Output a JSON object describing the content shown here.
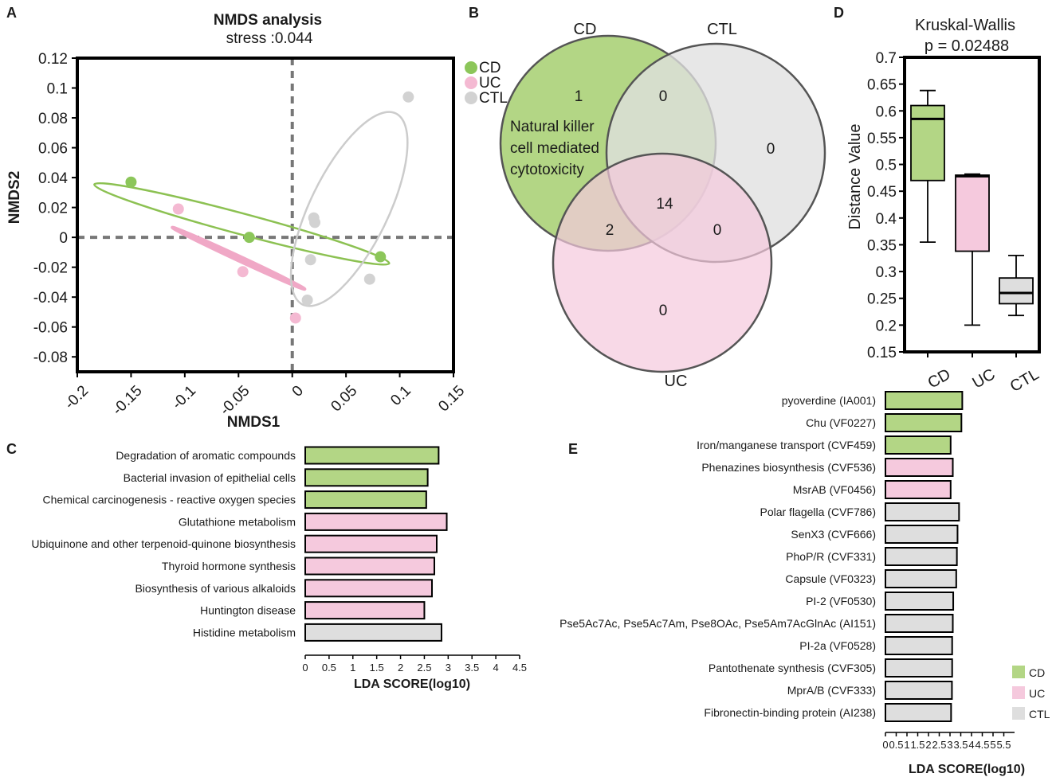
{
  "colors": {
    "cd": "#b3d685",
    "uc": "#f5c9dd",
    "ctl": "#dedede",
    "cd_line": "#8cc152",
    "uc_line": "#f0a8c6",
    "ctl_line": "#cccccc",
    "cd_pt": "#8cc65a",
    "uc_pt": "#f4b9d2",
    "ctl_pt": "#d2d2d2"
  },
  "panel_labels": {
    "a": "A",
    "b": "B",
    "c": "C",
    "d": "D",
    "e": "E"
  },
  "chart_data": [
    {
      "id": "A",
      "type": "scatter",
      "title": "NMDS analysis",
      "subtitle": "stress :0.044",
      "xlabel": "NMDS1",
      "ylabel": "NMDS2",
      "xlim": [
        -0.2,
        0.15
      ],
      "ylim": [
        -0.09,
        0.12
      ],
      "xticks": [
        -0.2,
        -0.15,
        -0.1,
        -0.05,
        0,
        0.05,
        0.1,
        0.15
      ],
      "xtick_labels": [
        "-0.2",
        "-0.15",
        "-0.1",
        "-0.05",
        "0",
        "0.05",
        "0.1",
        "0.15"
      ],
      "yticks": [
        0.12,
        0.1,
        0.08,
        0.06,
        0.04,
        0.02,
        0,
        -0.02,
        -0.04,
        -0.06,
        -0.08
      ],
      "ytick_labels": [
        "0.12",
        "0.1",
        "0.08",
        "0.06",
        "0.04",
        "0.02",
        "0",
        "-0.02",
        "-0.04",
        "-0.06",
        "-0.08"
      ],
      "legend": [
        "CD",
        "UC",
        "CTL"
      ],
      "series": [
        {
          "name": "CD",
          "points": [
            [
              -0.15,
              0.037
            ],
            [
              -0.04,
              0.0
            ],
            [
              0.082,
              -0.013
            ]
          ],
          "ellipse": {
            "cx": -0.047,
            "cy": 0.009,
            "rx": 0.142,
            "ry": 0.007,
            "angle_data_deg": -15
          }
        },
        {
          "name": "UC",
          "points": [
            [
              -0.106,
              0.019
            ],
            [
              -0.046,
              -0.023
            ],
            [
              0.003,
              -0.054
            ]
          ],
          "ellipse": {
            "cx": -0.05,
            "cy": -0.014,
            "rx": 0.068,
            "ry": 0.0015,
            "angle_data_deg": -25
          }
        },
        {
          "name": "CTL",
          "points": [
            [
              0.108,
              0.094
            ],
            [
              0.02,
              0.013
            ],
            [
              0.021,
              0.01
            ],
            [
              0.017,
              -0.015
            ],
            [
              0.072,
              -0.028
            ],
            [
              0.014,
              -0.042
            ]
          ],
          "ellipse": {
            "cx": 0.053,
            "cy": 0.019,
            "rx": 0.099,
            "ry": 0.026,
            "angle_data_deg": 64
          }
        }
      ]
    },
    {
      "id": "B",
      "type": "venn",
      "sets": [
        "CD",
        "CTL",
        "UC"
      ],
      "regions": {
        "cd_only": "1",
        "cd_ctl": "0",
        "ctl_only": "0",
        "cd_uc": "2",
        "all": "14",
        "ctl_uc": "0",
        "uc_only": "0"
      },
      "annotation": [
        "Natural killer",
        "cell mediated",
        "cytotoxicity"
      ]
    },
    {
      "id": "D",
      "type": "box",
      "title": "Kruskal-Wallis",
      "subtitle": "p = 0.02488",
      "ylabel": "Distance Value",
      "ylim": [
        0.15,
        0.7
      ],
      "yticks": [
        0.7,
        0.65,
        0.6,
        0.55,
        0.5,
        0.45,
        0.4,
        0.35,
        0.3,
        0.25,
        0.2,
        0.15
      ],
      "ytick_labels": [
        "0.7",
        "0.65",
        "0.6",
        "0.55",
        "0.5",
        "0.45",
        "0.4",
        "0.35",
        "0.3",
        "0.25",
        "0.2",
        "0.15"
      ],
      "categories": [
        "CD",
        "UC",
        "CTL"
      ],
      "boxes": [
        {
          "min": 0.355,
          "q1": 0.47,
          "median": 0.585,
          "q3": 0.61,
          "max": 0.638
        },
        {
          "min": 0.2,
          "q1": 0.338,
          "median": 0.478,
          "q3": 0.48,
          "max": 0.482
        },
        {
          "min": 0.218,
          "q1": 0.24,
          "median": 0.26,
          "q3": 0.288,
          "max": 0.33
        }
      ]
    },
    {
      "id": "C",
      "type": "bar",
      "xlabel": "LDA SCORE(log10)",
      "xlim": [
        0,
        4.5
      ],
      "xticks": [
        0,
        0.5,
        1,
        1.5,
        2,
        2.5,
        3,
        3.5,
        4,
        4.5
      ],
      "xtick_labels": [
        "0",
        "0.5",
        "1",
        "1.5",
        "2",
        "2.5",
        "3",
        "3.5",
        "4",
        "4.5"
      ],
      "categories": [
        "Degradation of aromatic compounds",
        "Bacterial invasion of epithelial cells",
        "Chemical carcinogenesis - reactive oxygen species",
        "Glutathione metabolism",
        "Ubiquinone and other terpenoid-quinone biosynthesis",
        "Thyroid hormone synthesis",
        "Biosynthesis of various alkaloids",
        "Huntington disease",
        "Histidine metabolism"
      ],
      "values": [
        2.8,
        2.57,
        2.54,
        2.97,
        2.76,
        2.71,
        2.66,
        2.5,
        2.86
      ],
      "groups": [
        "CD",
        "CD",
        "CD",
        "UC",
        "UC",
        "UC",
        "UC",
        "UC",
        "CTL"
      ]
    },
    {
      "id": "E",
      "type": "bar",
      "xlabel": "LDA SCORE(log10)",
      "xlim": [
        0,
        6
      ],
      "xticks": [
        0,
        0.5,
        1,
        1.5,
        2,
        2.5,
        3,
        3.5,
        4,
        4.5,
        5,
        5.5
      ],
      "xtick_labels": [
        "0",
        "0.5",
        "1",
        "1.5",
        "2",
        "2.5",
        "3",
        "3.5",
        "4",
        "4.5",
        "5",
        "5.5"
      ],
      "categories": [
        "pyoverdine (IA001)",
        "Chu (VF0227)",
        "Iron/manganese transport (CVF459)",
        "Phenazines biosynthesis (CVF536)",
        "MsrAB (VF0456)",
        "Polar flagella (CVF786)",
        "SenX3 (CVF666)",
        "PhoP/R (CVF331)",
        "Capsule (VF0323)",
        "PI-2 (VF0530)",
        "Pse5Ac7Ac, Pse5Ac7Am, Pse8OAc, Pse5Am7AcGlnAc (AI151)",
        "PI-2a (VF0528)",
        "Pantothenate synthesis (CVF305)",
        "MprA/B (CVF333)",
        "Fibronectin-binding protein (AI238)"
      ],
      "values": [
        3.57,
        3.53,
        3.03,
        3.13,
        3.03,
        3.42,
        3.35,
        3.32,
        3.29,
        3.15,
        3.13,
        3.1,
        3.1,
        3.09,
        3.05
      ],
      "groups": [
        "CD",
        "CD",
        "CD",
        "UC",
        "UC",
        "CTL",
        "CTL",
        "CTL",
        "CTL",
        "CTL",
        "CTL",
        "CTL",
        "CTL",
        "CTL",
        "CTL"
      ],
      "legend": [
        "CD",
        "UC",
        "CTL"
      ]
    }
  ]
}
